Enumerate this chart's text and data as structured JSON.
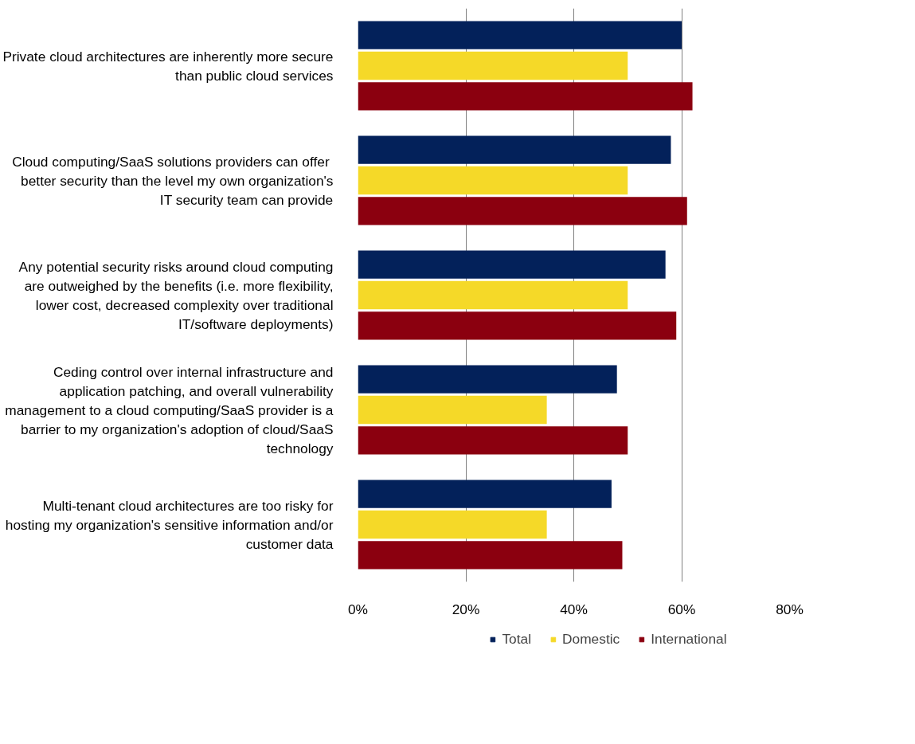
{
  "chart_data": {
    "type": "bar",
    "orientation": "horizontal",
    "categories": [
      "Private cloud architectures are inherently more secure than public cloud services",
      "Cloud computing/SaaS  solutions providers can offer better security than the level my own organization's IT security team can provide",
      "Any potential security risks around cloud computing are outweighed by the benefits (i.e. more flexibility, lower cost, decreased complexity over traditional IT/software deployments)",
      "Ceding control over internal infrastructure and application patching, and overall vulnerability management to a cloud computing/SaaS provider is a barrier to my organization's adoption of cloud/SaaS technology",
      "Multi-tenant cloud architectures are too risky for hosting my organization's sensitive information and/or customer data"
    ],
    "series": [
      {
        "name": "Total",
        "color": "#03215a",
        "values": [
          60,
          58,
          57,
          48,
          47
        ]
      },
      {
        "name": "Domestic",
        "color": "#f5d928",
        "values": [
          50,
          50,
          50,
          35,
          35
        ]
      },
      {
        "name": "International",
        "color": "#8b000f",
        "values": [
          62,
          61,
          59,
          50,
          49
        ]
      }
    ],
    "xlim": [
      0,
      80
    ],
    "xticks": [
      {
        "value": 0,
        "label": "0%"
      },
      {
        "value": 20,
        "label": "20%"
      },
      {
        "value": 40,
        "label": "40%"
      },
      {
        "value": 60,
        "label": "60%"
      },
      {
        "value": 80,
        "label": "80%"
      }
    ],
    "grid": "x",
    "legend": "bottom"
  }
}
